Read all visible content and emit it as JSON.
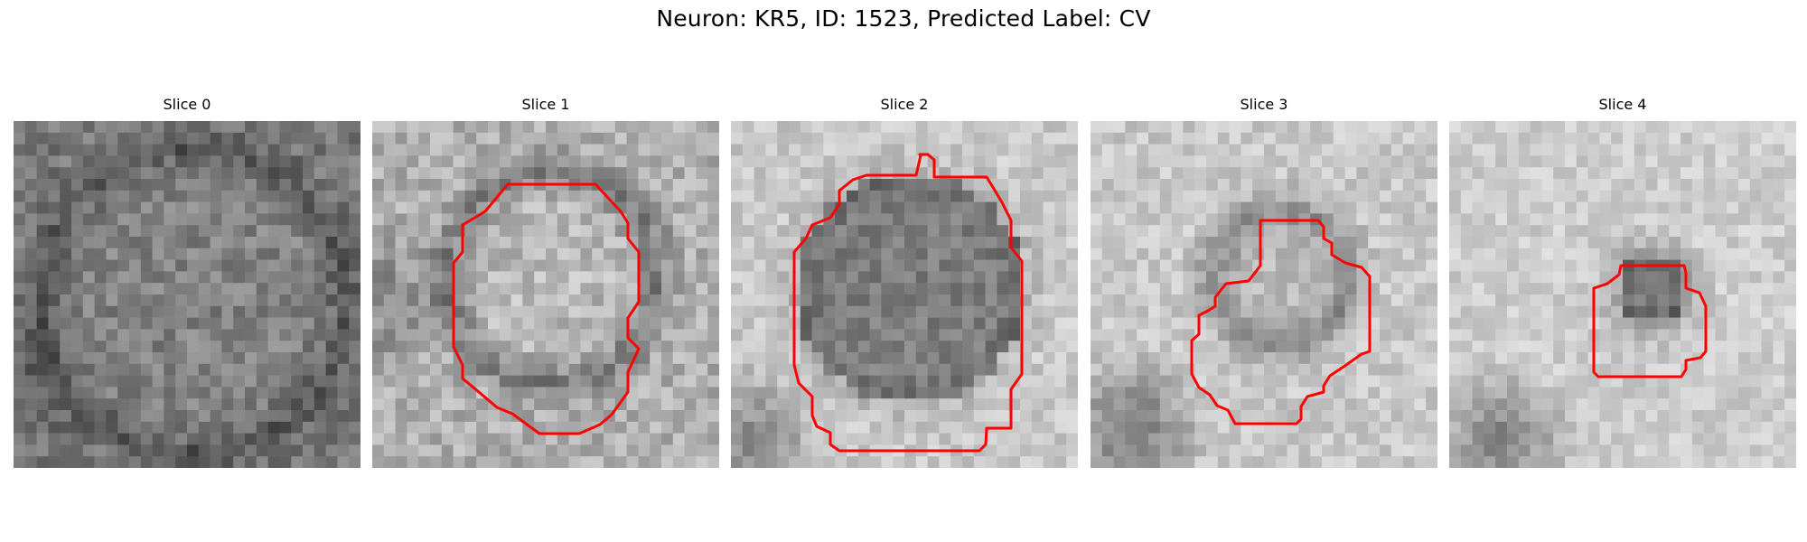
{
  "figure": {
    "title": "Neuron: KR5, ID: 1523, Predicted Label: CV"
  },
  "panels": [
    {
      "title": "Slice 0",
      "has_contour": false
    },
    {
      "title": "Slice 1",
      "has_contour": true
    },
    {
      "title": "Slice 2",
      "has_contour": true
    },
    {
      "title": "Slice 3",
      "has_contour": true
    },
    {
      "title": "Slice 4",
      "has_contour": true
    }
  ],
  "colors": {
    "contour": "#ff0000",
    "background": "#ffffff"
  },
  "image_style": "grayscale pixel grid"
}
